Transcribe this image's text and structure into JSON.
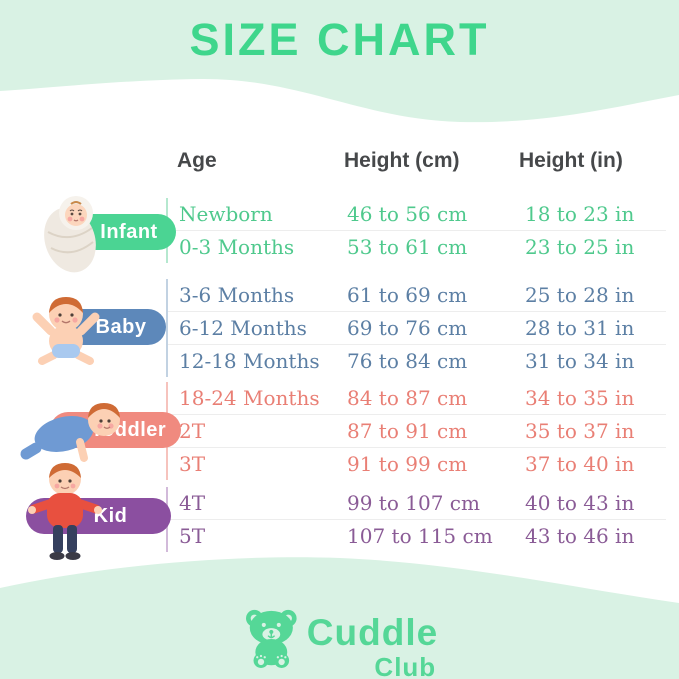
{
  "chart_data": {
    "type": "table",
    "title": "SIZE CHART",
    "columns": [
      "Age",
      "Height (cm)",
      "Height (in)"
    ],
    "groups": [
      {
        "label": "Infant",
        "icon": "swaddled-infant-icon",
        "pill_color": "#4bd493",
        "text_color": "#4fc98d",
        "line_color": "#b5e8cf",
        "rows": [
          {
            "age": "Newborn",
            "height_cm": "46 to 56 cm",
            "height_in": "18 to 23 in"
          },
          {
            "age": "0-3 Months",
            "height_cm": "53 to 61 cm",
            "height_in": "23 to 25 in"
          }
        ]
      },
      {
        "label": "Baby",
        "icon": "sitting-baby-icon",
        "pill_color": "#5d88ba",
        "text_color": "#5c7fa4",
        "line_color": "#c2d2e2",
        "rows": [
          {
            "age": "3-6 Months",
            "height_cm": "61 to 69 cm",
            "height_in": "25 to 28 in"
          },
          {
            "age": "6-12 Months",
            "height_cm": "69 to 76 cm",
            "height_in": "28 to 31 in"
          },
          {
            "age": "12-18 Months",
            "height_cm": "76 to 84 cm",
            "height_in": "31 to 34 in"
          }
        ]
      },
      {
        "label": "Toddler",
        "icon": "crawling-toddler-icon",
        "pill_color": "#f08a7f",
        "text_color": "#e97f75",
        "line_color": "#f6c3bd",
        "rows": [
          {
            "age": "18-24 Months",
            "height_cm": "84 to 87 cm",
            "height_in": "34 to 35 in"
          },
          {
            "age": "2T",
            "height_cm": "87 to 91 cm",
            "height_in": "35 to 37 in"
          },
          {
            "age": "3T",
            "height_cm": "91 to 99 cm",
            "height_in": "37 to 40 in"
          }
        ]
      },
      {
        "label": "Kid",
        "icon": "standing-kid-icon",
        "pill_color": "#8b4fa0",
        "text_color": "#8a5b96",
        "line_color": "#d2bada",
        "rows": [
          {
            "age": "4T",
            "height_cm": "99 to 107 cm",
            "height_in": "40 to 43 in"
          },
          {
            "age": "5T",
            "height_cm": "107 to 115 cm",
            "height_in": "43 to 46 in"
          }
        ]
      }
    ]
  },
  "footer": {
    "brand_line1": "Cuddle",
    "brand_line2": "Club",
    "logo_icon": "teddy-bear-icon"
  },
  "colors": {
    "background_mint": "#d9f2e4",
    "card_white": "#ffffff",
    "title_green": "#3fd68c",
    "header_text": "#46484a",
    "divider": "#ededed",
    "brand_green": "#55d797"
  }
}
